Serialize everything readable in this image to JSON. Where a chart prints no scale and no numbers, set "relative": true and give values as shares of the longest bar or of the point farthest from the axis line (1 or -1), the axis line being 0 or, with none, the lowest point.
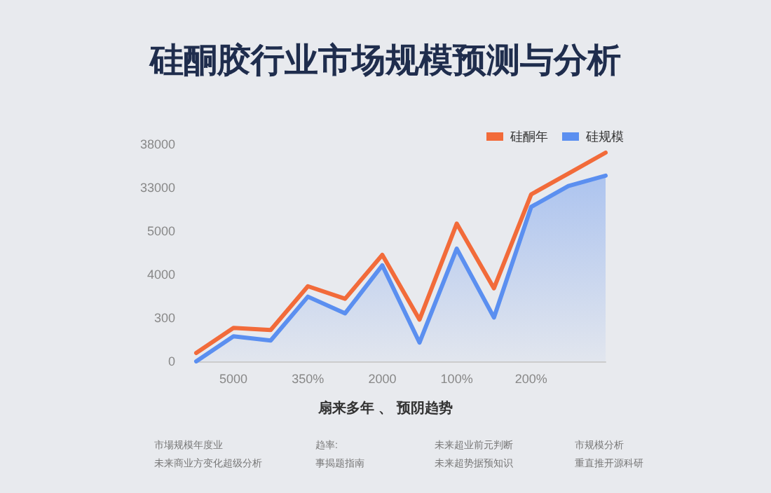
{
  "chart_data": {
    "type": "line",
    "title": "硅酮胶行业市场规模预测与分析",
    "relative": true,
    "categories": [
      null,
      "5000",
      null,
      "350%",
      null,
      "2000",
      null,
      "100%",
      null,
      "200%",
      null,
      null
    ],
    "series": [
      {
        "name": "硅酮年",
        "color": "#f26b3a",
        "values": [
          0.04,
          0.16,
          0.15,
          0.36,
          0.3,
          0.51,
          0.2,
          0.66,
          0.35,
          0.8,
          0.9,
          1
        ]
      },
      {
        "name": "硅规模",
        "type": "area",
        "color": "#5b8ff0",
        "values": [
          0,
          0.12,
          0.1,
          0.31,
          0.23,
          0.46,
          0.09,
          0.54,
          0.21,
          0.74,
          0.84,
          0.89
        ]
      }
    ],
    "legend": "top right",
    "marker": "none",
    "line_style": "solid",
    "annotations": [
      "0",
      "300",
      "4000",
      "5000",
      "33000",
      "38000",
      "扇来多年 、 预阴趋势",
      "市場规模年度业",
      "趋率:",
      "未来超业前元判断",
      "市规模分析",
      "未来商业方变化超级分析",
      "事揭题指南",
      "未来超势据预知识",
      "重直推开源科研"
    ]
  }
}
